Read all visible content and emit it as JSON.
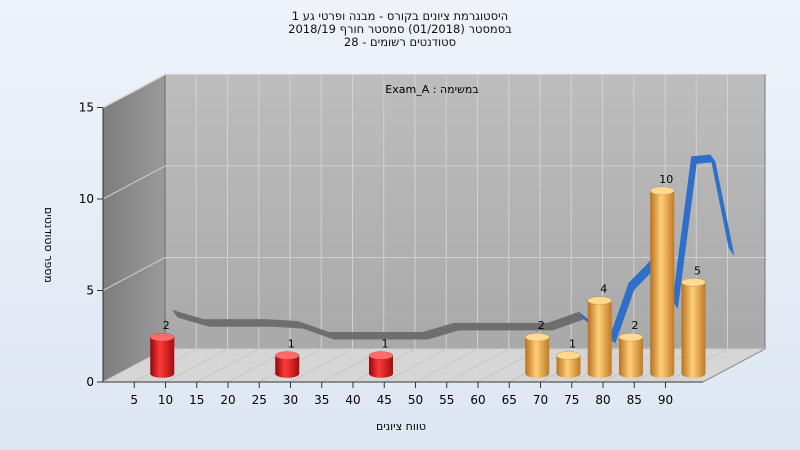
{
  "chart_data": {
    "type": "bar",
    "title_lines": [
      "היסטוגרמת ציונים בקורס - מבנה ופרטי גע 1",
      "בסמסטר  (01/2018)  סמסטר חורף  2018/19",
      "סטודנטים רשומים - 28"
    ],
    "annotation": "במשימה : Exam_A",
    "xlabel": "טווח ציונים",
    "ylabel": "מספר סטודנטים",
    "ylim": [
      0,
      15
    ],
    "yticks": [
      0,
      5,
      10,
      15
    ],
    "categories": [
      5,
      10,
      15,
      20,
      25,
      30,
      35,
      40,
      45,
      50,
      55,
      60,
      65,
      70,
      75,
      80,
      85,
      90
    ],
    "bars": [
      {
        "x": 7,
        "value": 2,
        "color": "red"
      },
      {
        "x": 27,
        "value": 1,
        "color": "red"
      },
      {
        "x": 42,
        "value": 1,
        "color": "red"
      },
      {
        "x": 67,
        "value": 2,
        "color": "orange"
      },
      {
        "x": 72,
        "value": 1,
        "color": "orange"
      },
      {
        "x": 77,
        "value": 4,
        "color": "orange"
      },
      {
        "x": 82,
        "value": 2,
        "color": "orange"
      },
      {
        "x": 87,
        "value": 10,
        "color": "orange"
      },
      {
        "x": 92,
        "value": 5,
        "color": "orange"
      }
    ],
    "trend": [
      {
        "x": 5,
        "y": 2.8
      },
      {
        "x": 10,
        "y": 2.3
      },
      {
        "x": 20,
        "y": 2.3
      },
      {
        "x": 25,
        "y": 2.2
      },
      {
        "x": 30,
        "y": 1.6
      },
      {
        "x": 35,
        "y": 1.6
      },
      {
        "x": 45,
        "y": 1.6
      },
      {
        "x": 50,
        "y": 2.1
      },
      {
        "x": 60,
        "y": 2.1
      },
      {
        "x": 65,
        "y": 2.1
      },
      {
        "x": 70,
        "y": 2.7
      },
      {
        "x": 73,
        "y": 1.9
      },
      {
        "x": 75,
        "y": 1.4
      },
      {
        "x": 78,
        "y": 4.3
      },
      {
        "x": 82,
        "y": 5.7
      },
      {
        "x": 85,
        "y": 3.3
      },
      {
        "x": 88,
        "y": 11.2
      },
      {
        "x": 91,
        "y": 11.3
      },
      {
        "x": 94,
        "y": 6.2
      }
    ],
    "colors": {
      "red": "#e01818",
      "orange": "#eea63a",
      "trend_gray": "#6e6e6e",
      "trend_blue": "#2f6fc8",
      "wall_back": "#b3b3b3",
      "wall_side": "#8a8a8a",
      "floor": "#d4d4d4"
    },
    "grid": true
  }
}
